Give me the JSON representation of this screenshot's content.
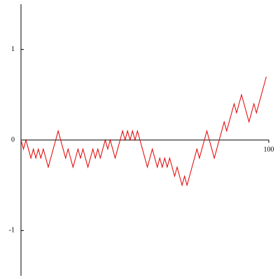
{
  "chart_data": {
    "type": "line",
    "x": [
      0,
      1,
      2,
      3,
      4,
      5,
      6,
      7,
      8,
      9,
      10,
      11,
      12,
      13,
      14,
      15,
      16,
      17,
      18,
      19,
      20,
      21,
      22,
      23,
      24,
      25,
      26,
      27,
      28,
      29,
      30,
      31,
      32,
      33,
      34,
      35,
      36,
      37,
      38,
      39,
      40,
      41,
      42,
      43,
      44,
      45,
      46,
      47,
      48,
      49,
      50,
      51,
      52,
      53,
      54,
      55,
      56,
      57,
      58,
      59,
      60,
      61,
      62,
      63,
      64,
      65,
      66,
      67,
      68,
      69,
      70,
      71,
      72,
      73,
      74,
      75,
      76,
      77,
      78,
      79,
      80,
      81,
      82,
      83,
      84,
      85,
      86,
      87,
      88,
      89,
      90,
      91,
      92,
      93,
      94,
      95,
      96,
      97,
      98,
      99
    ],
    "series": [
      {
        "color": "#e00000",
        "values": [
          0,
          -0.1,
          0,
          -0.1,
          -0.2,
          -0.1,
          -0.2,
          -0.1,
          -0.2,
          -0.1,
          -0.2,
          -0.3,
          -0.2,
          -0.1,
          0,
          0.1,
          0,
          -0.1,
          -0.2,
          -0.1,
          -0.2,
          -0.3,
          -0.2,
          -0.1,
          -0.2,
          -0.1,
          -0.2,
          -0.3,
          -0.2,
          -0.1,
          -0.2,
          -0.1,
          -0.2,
          -0.1,
          0,
          -0.1,
          0,
          -0.1,
          -0.2,
          -0.1,
          0,
          0.1,
          0,
          0.1,
          0,
          0.1,
          0,
          0.1,
          0,
          -0.1,
          -0.2,
          -0.3,
          -0.2,
          -0.1,
          -0.2,
          -0.3,
          -0.2,
          -0.3,
          -0.2,
          -0.3,
          -0.2,
          -0.3,
          -0.4,
          -0.3,
          -0.4,
          -0.5,
          -0.4,
          -0.5,
          -0.4,
          -0.3,
          -0.2,
          -0.1,
          -0.2,
          -0.1,
          0,
          0.1,
          0,
          -0.1,
          -0.2,
          -0.1,
          0,
          0.1,
          0.2,
          0.1,
          0.2,
          0.3,
          0.4,
          0.3,
          0.4,
          0.5,
          0.4,
          0.3,
          0.2,
          0.3,
          0.4,
          0.3,
          0.4,
          0.5,
          0.6,
          0.7
        ]
      }
    ],
    "xlim": [
      0,
      100
    ],
    "xticks": [
      100
    ],
    "ylim": [
      -1.5,
      1.5
    ],
    "yticks": [
      -1,
      0,
      1
    ]
  }
}
